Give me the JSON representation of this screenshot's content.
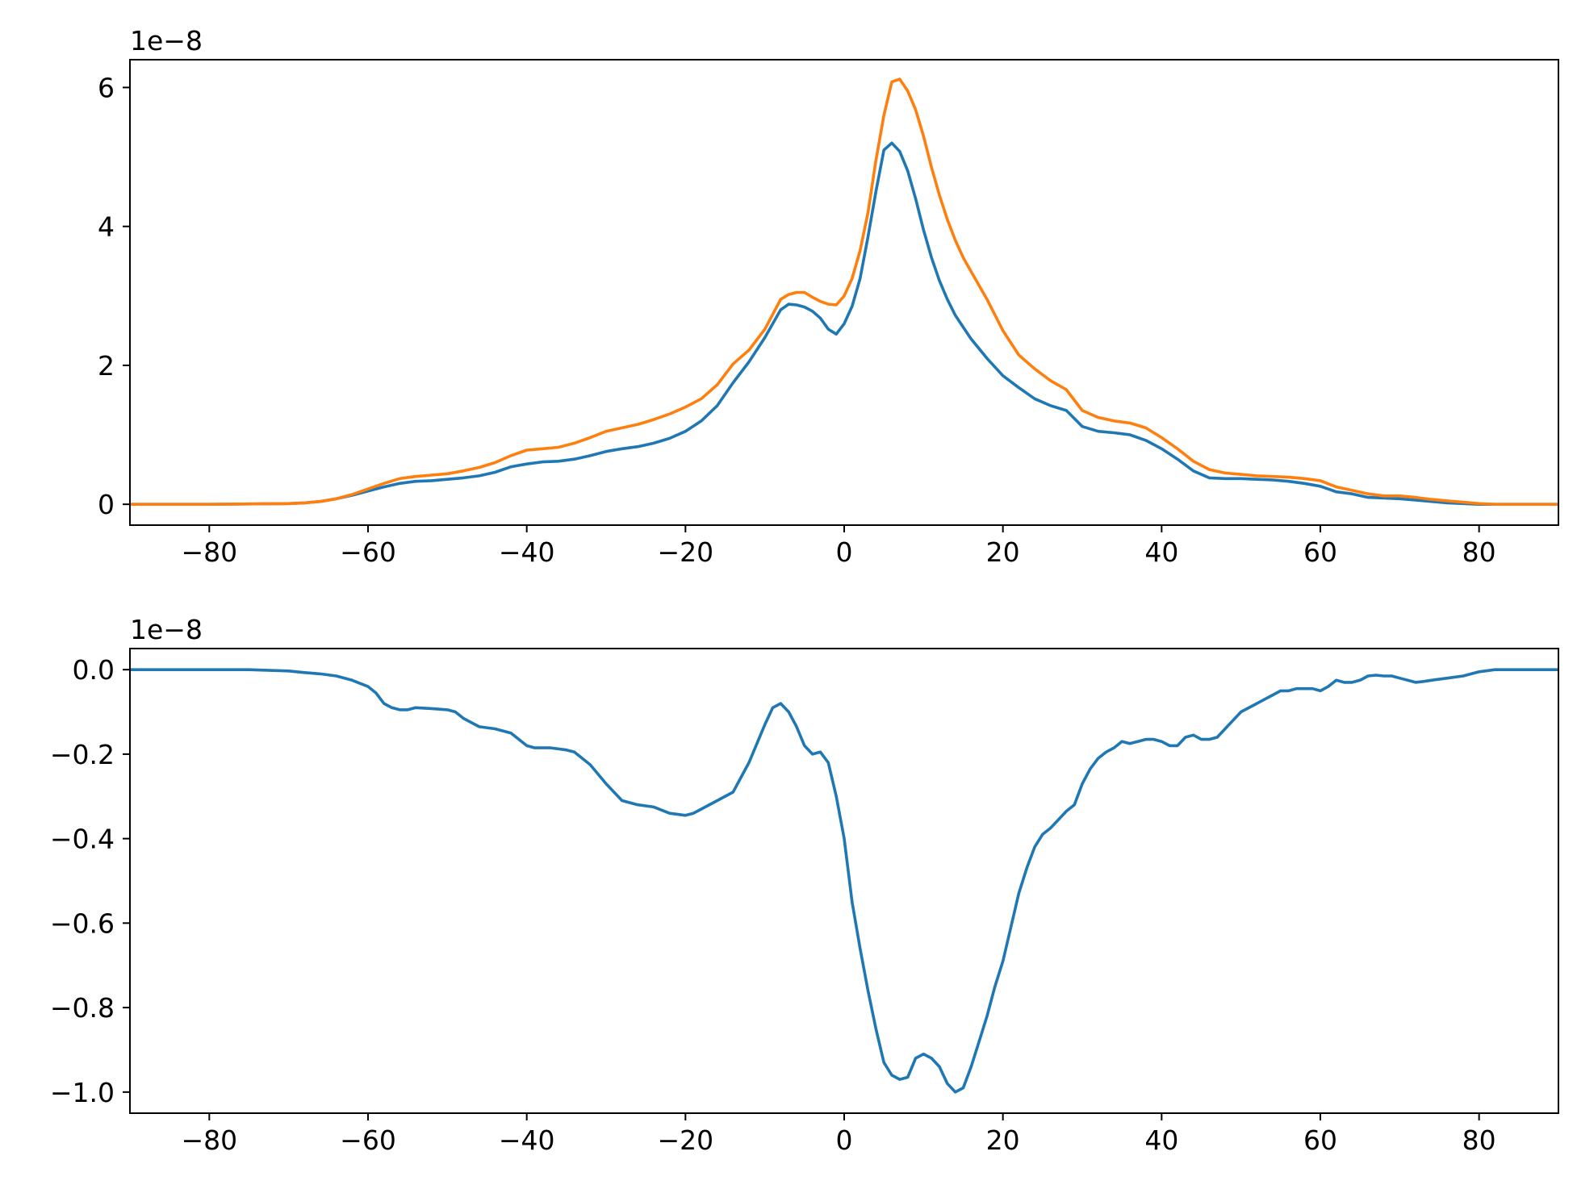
{
  "chart_data": [
    {
      "type": "line",
      "title": "",
      "xlabel": "",
      "ylabel": "",
      "offset_text": "1e−8",
      "xlim": [
        -90,
        90
      ],
      "ylim": [
        -0.3,
        6.4
      ],
      "xticks": [
        -80,
        -60,
        -40,
        -20,
        0,
        20,
        40,
        60,
        80
      ],
      "xtick_labels": [
        "−80",
        "−60",
        "−40",
        "−20",
        "0",
        "20",
        "40",
        "60",
        "80"
      ],
      "yticks": [
        0,
        2,
        4,
        6
      ],
      "ytick_labels": [
        "0",
        "2",
        "4",
        "6"
      ],
      "grid": false,
      "legend": "none",
      "series": [
        {
          "color": "#1f77b4",
          "x": [
            -90,
            -80,
            -70,
            -68,
            -66,
            -64,
            -62,
            -60,
            -58,
            -56,
            -54,
            -52,
            -50,
            -48,
            -46,
            -44,
            -42,
            -40,
            -38,
            -36,
            -34,
            -32,
            -30,
            -28,
            -26,
            -24,
            -22,
            -20,
            -18,
            -16,
            -14,
            -12,
            -10,
            -8,
            -7,
            -6,
            -5,
            -4,
            -3,
            -2,
            -1,
            0,
            1,
            2,
            3,
            4,
            5,
            6,
            7,
            8,
            9,
            10,
            11,
            12,
            13,
            14,
            15,
            16,
            18,
            20,
            22,
            24,
            26,
            28,
            30,
            32,
            34,
            36,
            38,
            40,
            42,
            44,
            46,
            48,
            50,
            52,
            54,
            56,
            58,
            60,
            62,
            64,
            66,
            68,
            70,
            72,
            74,
            76,
            78,
            80,
            82,
            84,
            86,
            88,
            90
          ],
          "y": [
            0,
            0,
            0.01,
            0.02,
            0.04,
            0.08,
            0.13,
            0.19,
            0.25,
            0.3,
            0.33,
            0.34,
            0.36,
            0.38,
            0.41,
            0.46,
            0.54,
            0.58,
            0.61,
            0.62,
            0.65,
            0.7,
            0.76,
            0.8,
            0.83,
            0.88,
            0.95,
            1.05,
            1.2,
            1.42,
            1.75,
            2.05,
            2.4,
            2.8,
            2.88,
            2.87,
            2.84,
            2.78,
            2.68,
            2.52,
            2.45,
            2.6,
            2.85,
            3.25,
            3.85,
            4.5,
            5.1,
            5.2,
            5.08,
            4.8,
            4.4,
            3.95,
            3.55,
            3.22,
            2.95,
            2.72,
            2.55,
            2.38,
            2.1,
            1.85,
            1.68,
            1.52,
            1.42,
            1.35,
            1.12,
            1.05,
            1.03,
            1,
            0.92,
            0.8,
            0.65,
            0.48,
            0.38,
            0.37,
            0.37,
            0.36,
            0.35,
            0.33,
            0.3,
            0.26,
            0.18,
            0.15,
            0.1,
            0.09,
            0.08,
            0.06,
            0.04,
            0.02,
            0.01,
            0,
            0,
            0,
            0,
            0,
            0
          ]
        },
        {
          "color": "#ff7f0e",
          "x": [
            -90,
            -80,
            -70,
            -68,
            -66,
            -64,
            -62,
            -60,
            -58,
            -56,
            -54,
            -52,
            -50,
            -48,
            -46,
            -44,
            -42,
            -40,
            -38,
            -36,
            -34,
            -32,
            -30,
            -28,
            -26,
            -24,
            -22,
            -20,
            -18,
            -16,
            -14,
            -12,
            -10,
            -8,
            -7,
            -6,
            -5,
            -4,
            -3,
            -2,
            -1,
            0,
            1,
            2,
            3,
            4,
            5,
            6,
            7,
            8,
            9,
            10,
            11,
            12,
            13,
            14,
            15,
            16,
            18,
            20,
            22,
            24,
            26,
            28,
            30,
            32,
            34,
            36,
            38,
            40,
            42,
            44,
            46,
            48,
            50,
            52,
            54,
            56,
            58,
            60,
            62,
            64,
            66,
            68,
            70,
            72,
            74,
            76,
            78,
            80,
            82,
            84,
            86,
            88,
            90
          ],
          "y": [
            0,
            0,
            0.01,
            0.02,
            0.04,
            0.08,
            0.14,
            0.22,
            0.3,
            0.37,
            0.4,
            0.42,
            0.44,
            0.48,
            0.53,
            0.6,
            0.7,
            0.78,
            0.8,
            0.82,
            0.88,
            0.96,
            1.05,
            1.1,
            1.15,
            1.22,
            1.3,
            1.4,
            1.52,
            1.72,
            2.02,
            2.22,
            2.52,
            2.95,
            3.02,
            3.05,
            3.05,
            2.98,
            2.92,
            2.88,
            2.87,
            3.0,
            3.25,
            3.65,
            4.2,
            4.95,
            5.6,
            6.08,
            6.12,
            5.95,
            5.68,
            5.3,
            4.85,
            4.45,
            4.1,
            3.8,
            3.55,
            3.35,
            2.95,
            2.5,
            2.15,
            1.95,
            1.78,
            1.65,
            1.35,
            1.25,
            1.2,
            1.17,
            1.1,
            0.96,
            0.8,
            0.62,
            0.5,
            0.45,
            0.43,
            0.41,
            0.4,
            0.39,
            0.37,
            0.34,
            0.25,
            0.2,
            0.15,
            0.12,
            0.12,
            0.1,
            0.07,
            0.05,
            0.03,
            0.01,
            0,
            0,
            0,
            0,
            0
          ]
        }
      ]
    },
    {
      "type": "line",
      "title": "",
      "xlabel": "",
      "ylabel": "",
      "offset_text": "1e−8",
      "xlim": [
        -90,
        90
      ],
      "ylim": [
        -1.05,
        0.05
      ],
      "xticks": [
        -80,
        -60,
        -40,
        -20,
        0,
        20,
        40,
        60,
        80
      ],
      "xtick_labels": [
        "−80",
        "−60",
        "−40",
        "−20",
        "0",
        "20",
        "40",
        "60",
        "80"
      ],
      "yticks": [
        0.0,
        -0.2,
        -0.4,
        -0.6,
        -0.8,
        -1.0
      ],
      "ytick_labels": [
        "0.0",
        "−0.2",
        "−0.4",
        "−0.6",
        "−0.8",
        "−1.0"
      ],
      "grid": false,
      "legend": "none",
      "series": [
        {
          "color": "#1f77b4",
          "x": [
            -90,
            -80,
            -75,
            -70,
            -68,
            -66,
            -64,
            -62,
            -60,
            -59,
            -58,
            -57,
            -56,
            -55,
            -54,
            -52,
            -50,
            -49,
            -48,
            -46,
            -44,
            -42,
            -40,
            -39,
            -38,
            -37,
            -35,
            -34,
            -32,
            -30,
            -28,
            -27,
            -26,
            -24,
            -22,
            -20,
            -19,
            -18,
            -16,
            -14,
            -12,
            -10,
            -9,
            -8,
            -7,
            -6,
            -5,
            -4,
            -3,
            -2,
            -1,
            0,
            1,
            2,
            3,
            4,
            5,
            6,
            7,
            8,
            9,
            10,
            11,
            12,
            13,
            14,
            15,
            16,
            17,
            18,
            19,
            20,
            21,
            22,
            23,
            24,
            25,
            26,
            27,
            28,
            29,
            30,
            31,
            32,
            33,
            34,
            35,
            36,
            37,
            38,
            39,
            40,
            41,
            42,
            43,
            44,
            45,
            46,
            47,
            48,
            50,
            52,
            53,
            54,
            55,
            56,
            57,
            58,
            59,
            60,
            61,
            62,
            63,
            64,
            65,
            66,
            67,
            68,
            69,
            70,
            71,
            72,
            73,
            74,
            76,
            78,
            80,
            82,
            84,
            86,
            88,
            90
          ],
          "y": [
            0,
            0,
            0,
            -0.003,
            -0.007,
            -0.01,
            -0.015,
            -0.025,
            -0.04,
            -0.055,
            -0.08,
            -0.09,
            -0.095,
            -0.095,
            -0.09,
            -0.092,
            -0.095,
            -0.1,
            -0.115,
            -0.135,
            -0.14,
            -0.15,
            -0.18,
            -0.185,
            -0.185,
            -0.185,
            -0.19,
            -0.195,
            -0.225,
            -0.27,
            -0.31,
            -0.315,
            -0.32,
            -0.325,
            -0.34,
            -0.345,
            -0.34,
            -0.33,
            -0.31,
            -0.29,
            -0.22,
            -0.13,
            -0.09,
            -0.08,
            -0.1,
            -0.135,
            -0.18,
            -0.2,
            -0.195,
            -0.22,
            -0.3,
            -0.4,
            -0.55,
            -0.66,
            -0.76,
            -0.85,
            -0.93,
            -0.96,
            -0.97,
            -0.965,
            -0.92,
            -0.91,
            -0.92,
            -0.94,
            -0.98,
            -1.0,
            -0.99,
            -0.94,
            -0.88,
            -0.82,
            -0.75,
            -0.69,
            -0.61,
            -0.53,
            -0.47,
            -0.42,
            -0.39,
            -0.375,
            -0.355,
            -0.335,
            -0.32,
            -0.27,
            -0.235,
            -0.21,
            -0.195,
            -0.185,
            -0.17,
            -0.175,
            -0.17,
            -0.165,
            -0.165,
            -0.17,
            -0.18,
            -0.18,
            -0.16,
            -0.155,
            -0.165,
            -0.165,
            -0.16,
            -0.14,
            -0.1,
            -0.08,
            -0.07,
            -0.06,
            -0.05,
            -0.05,
            -0.045,
            -0.045,
            -0.045,
            -0.05,
            -0.04,
            -0.025,
            -0.03,
            -0.03,
            -0.025,
            -0.015,
            -0.013,
            -0.015,
            -0.015,
            -0.02,
            -0.025,
            -0.03,
            -0.028,
            -0.025,
            -0.02,
            -0.015,
            -0.005,
            0,
            0,
            0,
            0,
            0
          ]
        }
      ]
    }
  ]
}
